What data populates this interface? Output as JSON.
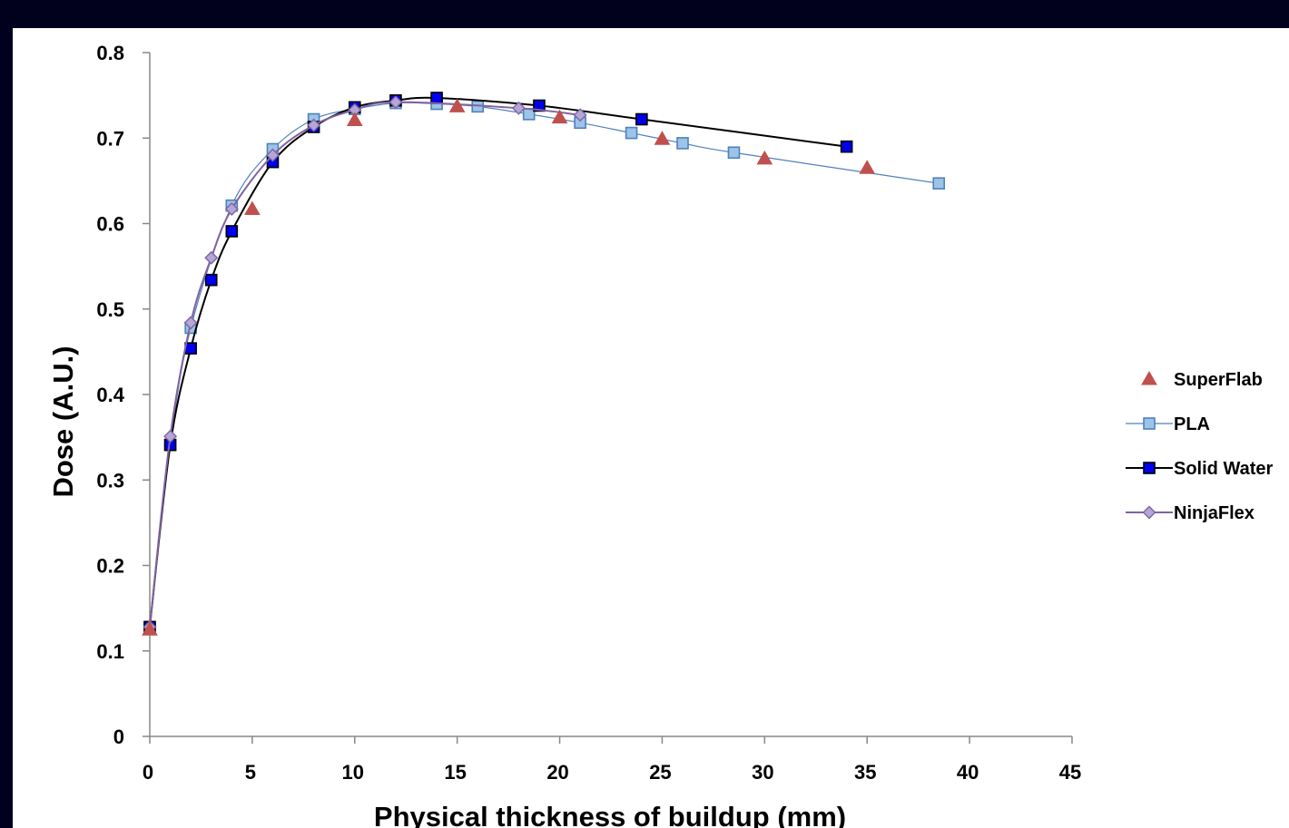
{
  "chart_data": {
    "type": "scatter",
    "title": "",
    "xlabel": "Physical thickness  of buildup (mm)",
    "ylabel": "Dose (A.U.)",
    "xlim": [
      0,
      45
    ],
    "ylim": [
      0,
      0.8
    ],
    "xticks": [
      "0",
      "5",
      "10",
      "15",
      "20",
      "25",
      "30",
      "35",
      "40",
      "45"
    ],
    "yticks": [
      "0",
      "0.1",
      "0.2",
      "0.3",
      "0.4",
      "0.5",
      "0.6",
      "0.7",
      "0.8"
    ],
    "grid": false,
    "legend_position": "right",
    "series": [
      {
        "name": "SuperFlab",
        "marker": "triangle",
        "line": false,
        "color": "#c0504d",
        "x": [
          0,
          5,
          10,
          15,
          20,
          25,
          30,
          35
        ],
        "y": [
          0.125,
          0.617,
          0.721,
          0.737,
          0.724,
          0.699,
          0.676,
          0.665
        ]
      },
      {
        "name": "PLA",
        "marker": "square",
        "line": true,
        "color": "#4f81bd",
        "fill": "#9dc3e6",
        "x": [
          0,
          1,
          2,
          4,
          6,
          8,
          10,
          12,
          14,
          16,
          18.5,
          21,
          23.5,
          26,
          28.5,
          38.5
        ],
        "y": [
          0.128,
          0.341,
          0.478,
          0.621,
          0.687,
          0.722,
          0.734,
          0.741,
          0.74,
          0.737,
          0.728,
          0.718,
          0.706,
          0.694,
          0.683,
          0.647
        ]
      },
      {
        "name": "Solid Water",
        "marker": "square",
        "line": true,
        "color": "#000000",
        "fill": "#0000ee",
        "x": [
          0,
          1,
          2,
          3,
          4,
          6,
          8,
          10,
          12,
          14,
          19,
          24,
          34
        ],
        "y": [
          0.128,
          0.341,
          0.454,
          0.534,
          0.591,
          0.672,
          0.713,
          0.736,
          0.744,
          0.747,
          0.738,
          0.722,
          0.69
        ]
      },
      {
        "name": "NinjaFlex",
        "marker": "diamond",
        "line": true,
        "color": "#8064a2",
        "fill": "#b4a7d6",
        "x": [
          0,
          1,
          2,
          3,
          4,
          6,
          8,
          10,
          12,
          18,
          21
        ],
        "y": [
          0.128,
          0.351,
          0.484,
          0.56,
          0.617,
          0.68,
          0.715,
          0.733,
          0.742,
          0.735,
          0.727
        ]
      }
    ]
  }
}
